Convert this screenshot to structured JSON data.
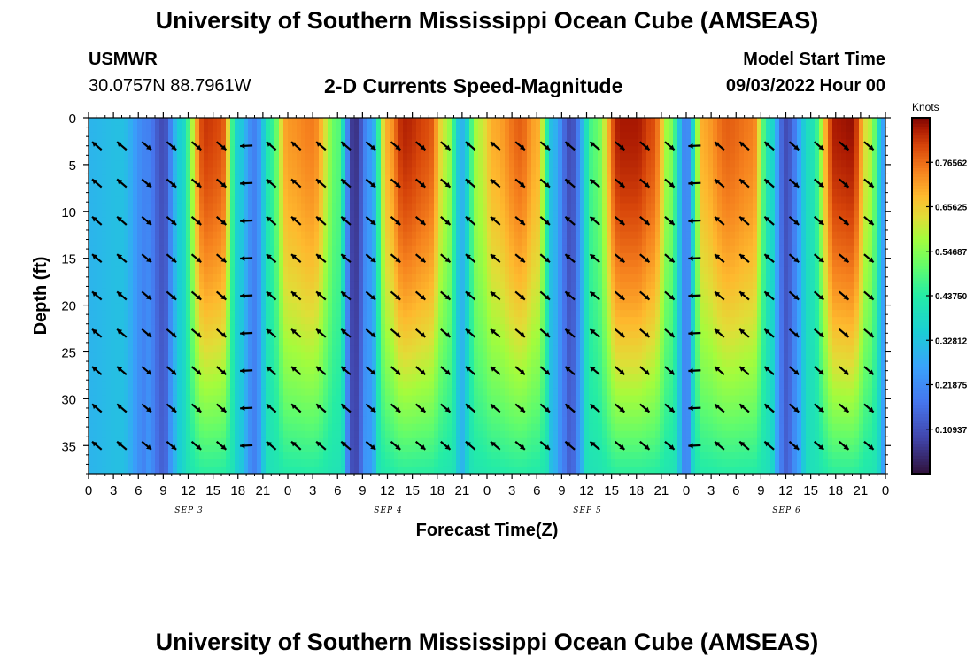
{
  "header": {
    "title": "University of Southern Mississippi Ocean Cube (AMSEAS)",
    "station": "USMWR",
    "coords": "30.0757N  88.7961W",
    "plot_title": "2-D Currents Speed-Magnitude",
    "model_start_label": "Model Start Time",
    "model_start_value": "09/03/2022 Hour 00"
  },
  "footer": {
    "title": "University of Southern Mississippi Ocean Cube (AMSEAS)"
  },
  "chart_data": {
    "type": "heatmap",
    "title": "2-D Currents Speed-Magnitude",
    "xlabel": "Forecast Time(Z)",
    "ylabel": "Depth (ft)",
    "x_range_hours": [
      0,
      96
    ],
    "ylim": [
      0,
      38
    ],
    "y_ticks": [
      0,
      5,
      10,
      15,
      20,
      25,
      30,
      35
    ],
    "x_tick_step_hours": 3,
    "x_tick_labels": [
      "0",
      "3",
      "6",
      "9",
      "12",
      "15",
      "18",
      "21",
      "0",
      "3",
      "6",
      "9",
      "12",
      "15",
      "18",
      "21",
      "0",
      "3",
      "6",
      "9",
      "12",
      "15",
      "18",
      "21",
      "0",
      "3",
      "6",
      "9",
      "12",
      "15",
      "18",
      "21",
      "0"
    ],
    "day_labels": [
      {
        "label": "SEP 3",
        "hour": 12
      },
      {
        "label": "SEP 4",
        "hour": 36
      },
      {
        "label": "SEP 5",
        "hour": 60
      },
      {
        "label": "SEP 6",
        "hour": 84
      }
    ],
    "colorbar": {
      "unit": "Knots",
      "min": 0.0,
      "max": 0.875,
      "tick_values": [
        0.10937,
        0.21875,
        0.32812,
        0.4375,
        0.54687,
        0.65625,
        0.76562
      ],
      "tick_labels": [
        "0.10937",
        "0.21875",
        "0.32812",
        "0.43750",
        "0.54687",
        "0.65625",
        "0.76562"
      ]
    },
    "surface_speed_profile": {
      "hours": [
        0,
        4,
        7,
        9,
        11,
        14,
        16,
        18,
        20,
        22,
        24,
        27,
        30,
        32,
        34,
        36,
        38,
        41,
        43,
        45,
        47,
        49,
        52,
        54,
        56,
        58,
        61,
        64,
        66,
        68,
        70,
        72,
        74,
        77,
        80,
        82,
        84,
        87,
        90,
        92,
        94,
        96
      ],
      "speeds": [
        0.3,
        0.32,
        0.2,
        0.1,
        0.35,
        0.82,
        0.8,
        0.35,
        0.2,
        0.45,
        0.72,
        0.75,
        0.5,
        0.05,
        0.25,
        0.7,
        0.84,
        0.8,
        0.6,
        0.3,
        0.6,
        0.7,
        0.78,
        0.7,
        0.3,
        0.1,
        0.5,
        0.85,
        0.85,
        0.8,
        0.55,
        0.2,
        0.7,
        0.78,
        0.75,
        0.4,
        0.1,
        0.4,
        0.85,
        0.86,
        0.6,
        0.25
      ]
    },
    "depth_decay_note": "speed decreases with depth in strong-flow bands",
    "vectors": {
      "hours_step": 3,
      "depths": [
        3,
        7,
        11,
        15,
        19,
        23,
        27,
        31,
        35
      ],
      "direction_by_hour": [
        {
          "from": 0,
          "to": 7,
          "dir": "NW"
        },
        {
          "from": 7,
          "to": 12,
          "dir": "SE"
        },
        {
          "from": 12,
          "to": 18,
          "dir": "SE"
        },
        {
          "from": 18,
          "to": 22,
          "dir": "W"
        },
        {
          "from": 22,
          "to": 30,
          "dir": "NW"
        },
        {
          "from": 30,
          "to": 33,
          "dir": "NW"
        },
        {
          "from": 33,
          "to": 45,
          "dir": "SE"
        },
        {
          "from": 45,
          "to": 50,
          "dir": "NW"
        },
        {
          "from": 50,
          "to": 58,
          "dir": "SE"
        },
        {
          "from": 58,
          "to": 62,
          "dir": "NW"
        },
        {
          "from": 62,
          "to": 72,
          "dir": "SE"
        },
        {
          "from": 72,
          "to": 75,
          "dir": "W"
        },
        {
          "from": 75,
          "to": 84,
          "dir": "NW"
        },
        {
          "from": 84,
          "to": 96,
          "dir": "SE"
        }
      ]
    }
  }
}
